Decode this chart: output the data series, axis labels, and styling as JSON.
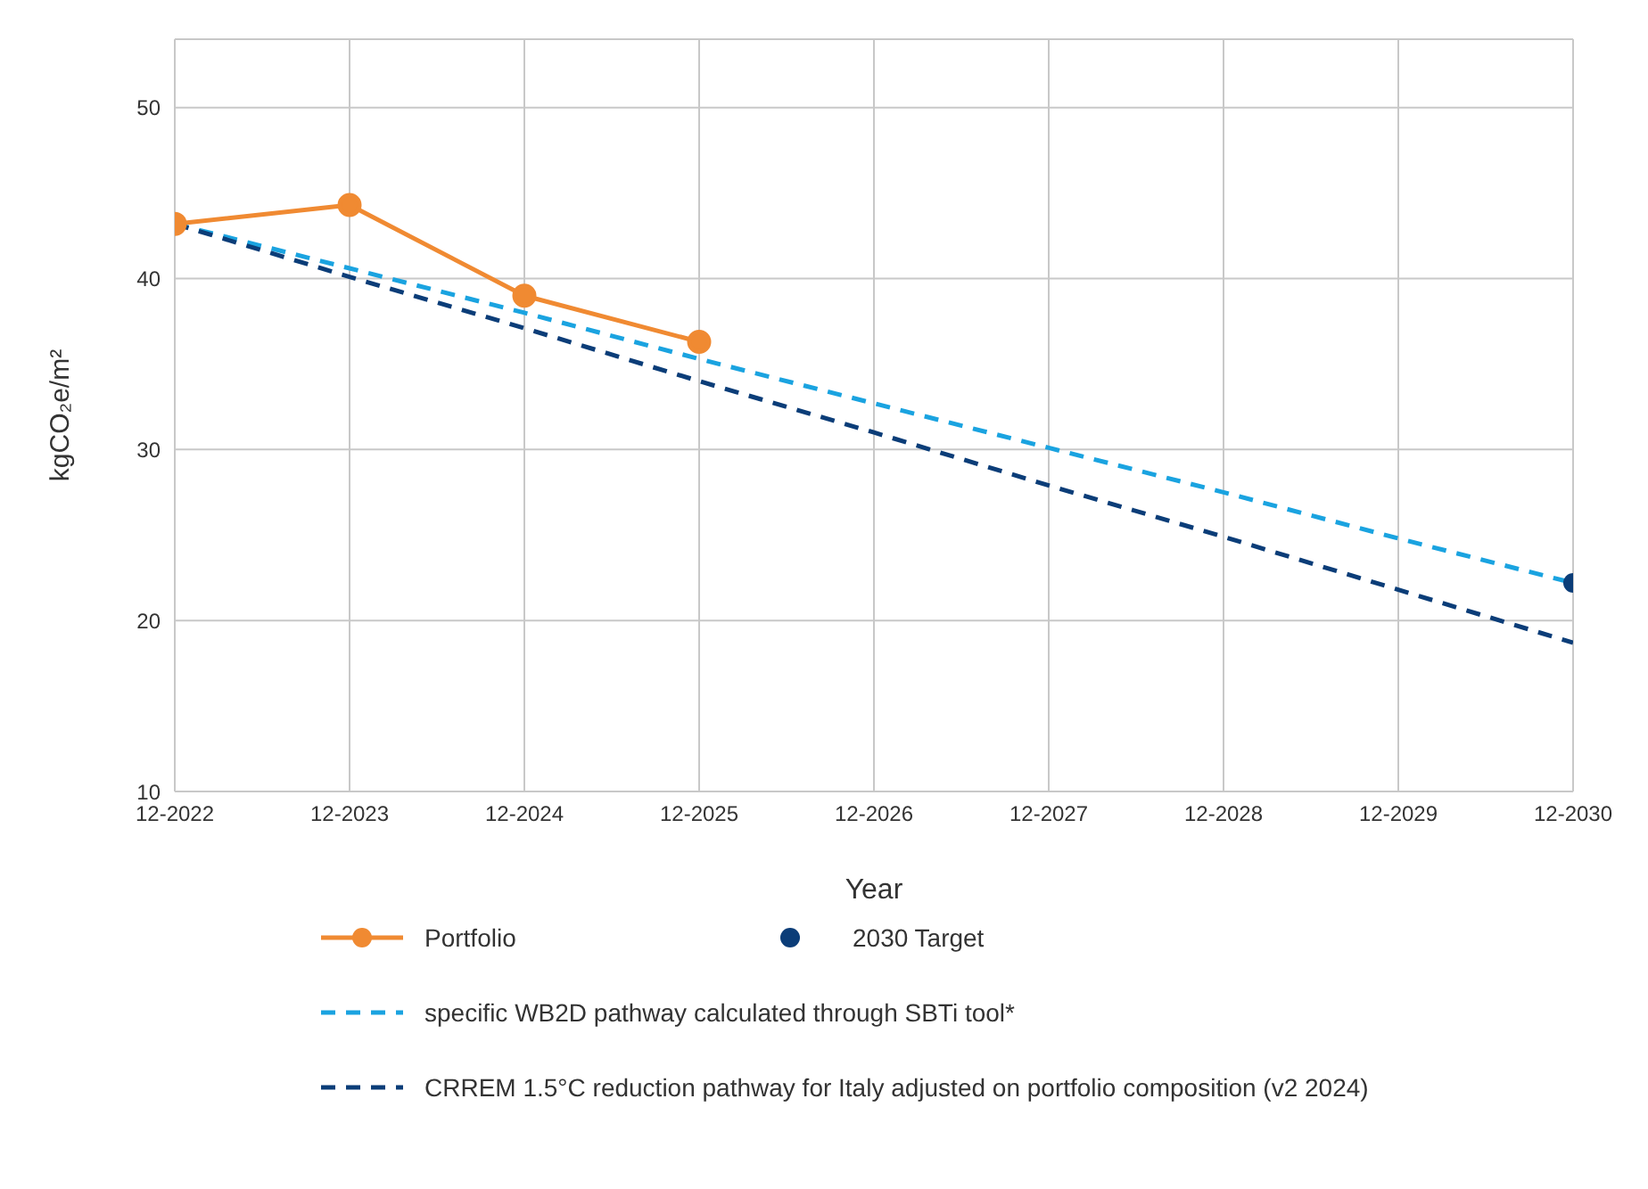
{
  "chart_data": {
    "type": "line",
    "xlabel": "Year",
    "ylabel": "kgCO₂e/m²",
    "categories": [
      "12-2022",
      "12-2023",
      "12-2024",
      "12-2025",
      "12-2026",
      "12-2027",
      "12-2028",
      "12-2029",
      "12-2030"
    ],
    "series": [
      {
        "name": "Portfolio",
        "color": "#f08a32",
        "marker": "circle",
        "line_style": "solid",
        "values": [
          43.2,
          44.3,
          39.0,
          36.3,
          null,
          null,
          null,
          null,
          null
        ]
      },
      {
        "name": "2030 Target",
        "type": "scatter",
        "color": "#0b3d78",
        "marker": "circle",
        "values": [
          null,
          null,
          null,
          null,
          null,
          null,
          null,
          null,
          22.2
        ]
      },
      {
        "name": "specific WB2D pathway calculated through SBTi tool*",
        "color": "#1aa3e0",
        "marker": "none",
        "line_style": "dashed",
        "values": [
          43.2,
          40.6,
          38.0,
          35.3,
          32.7,
          30.1,
          27.5,
          24.8,
          22.2
        ]
      },
      {
        "name": "CRREM 1.5°C reduction pathway for Italy adjusted on portfolio composition (v2 2024)",
        "color": "#0b3d78",
        "marker": "none",
        "line_style": "dashed",
        "values": [
          43.2,
          40.1,
          37.1,
          34.0,
          31.0,
          27.9,
          24.9,
          21.8,
          18.7
        ]
      }
    ],
    "ylim": [
      10,
      54
    ],
    "yticks": [
      10,
      20,
      30,
      40,
      50
    ],
    "grid": true,
    "legend": "bottom"
  }
}
